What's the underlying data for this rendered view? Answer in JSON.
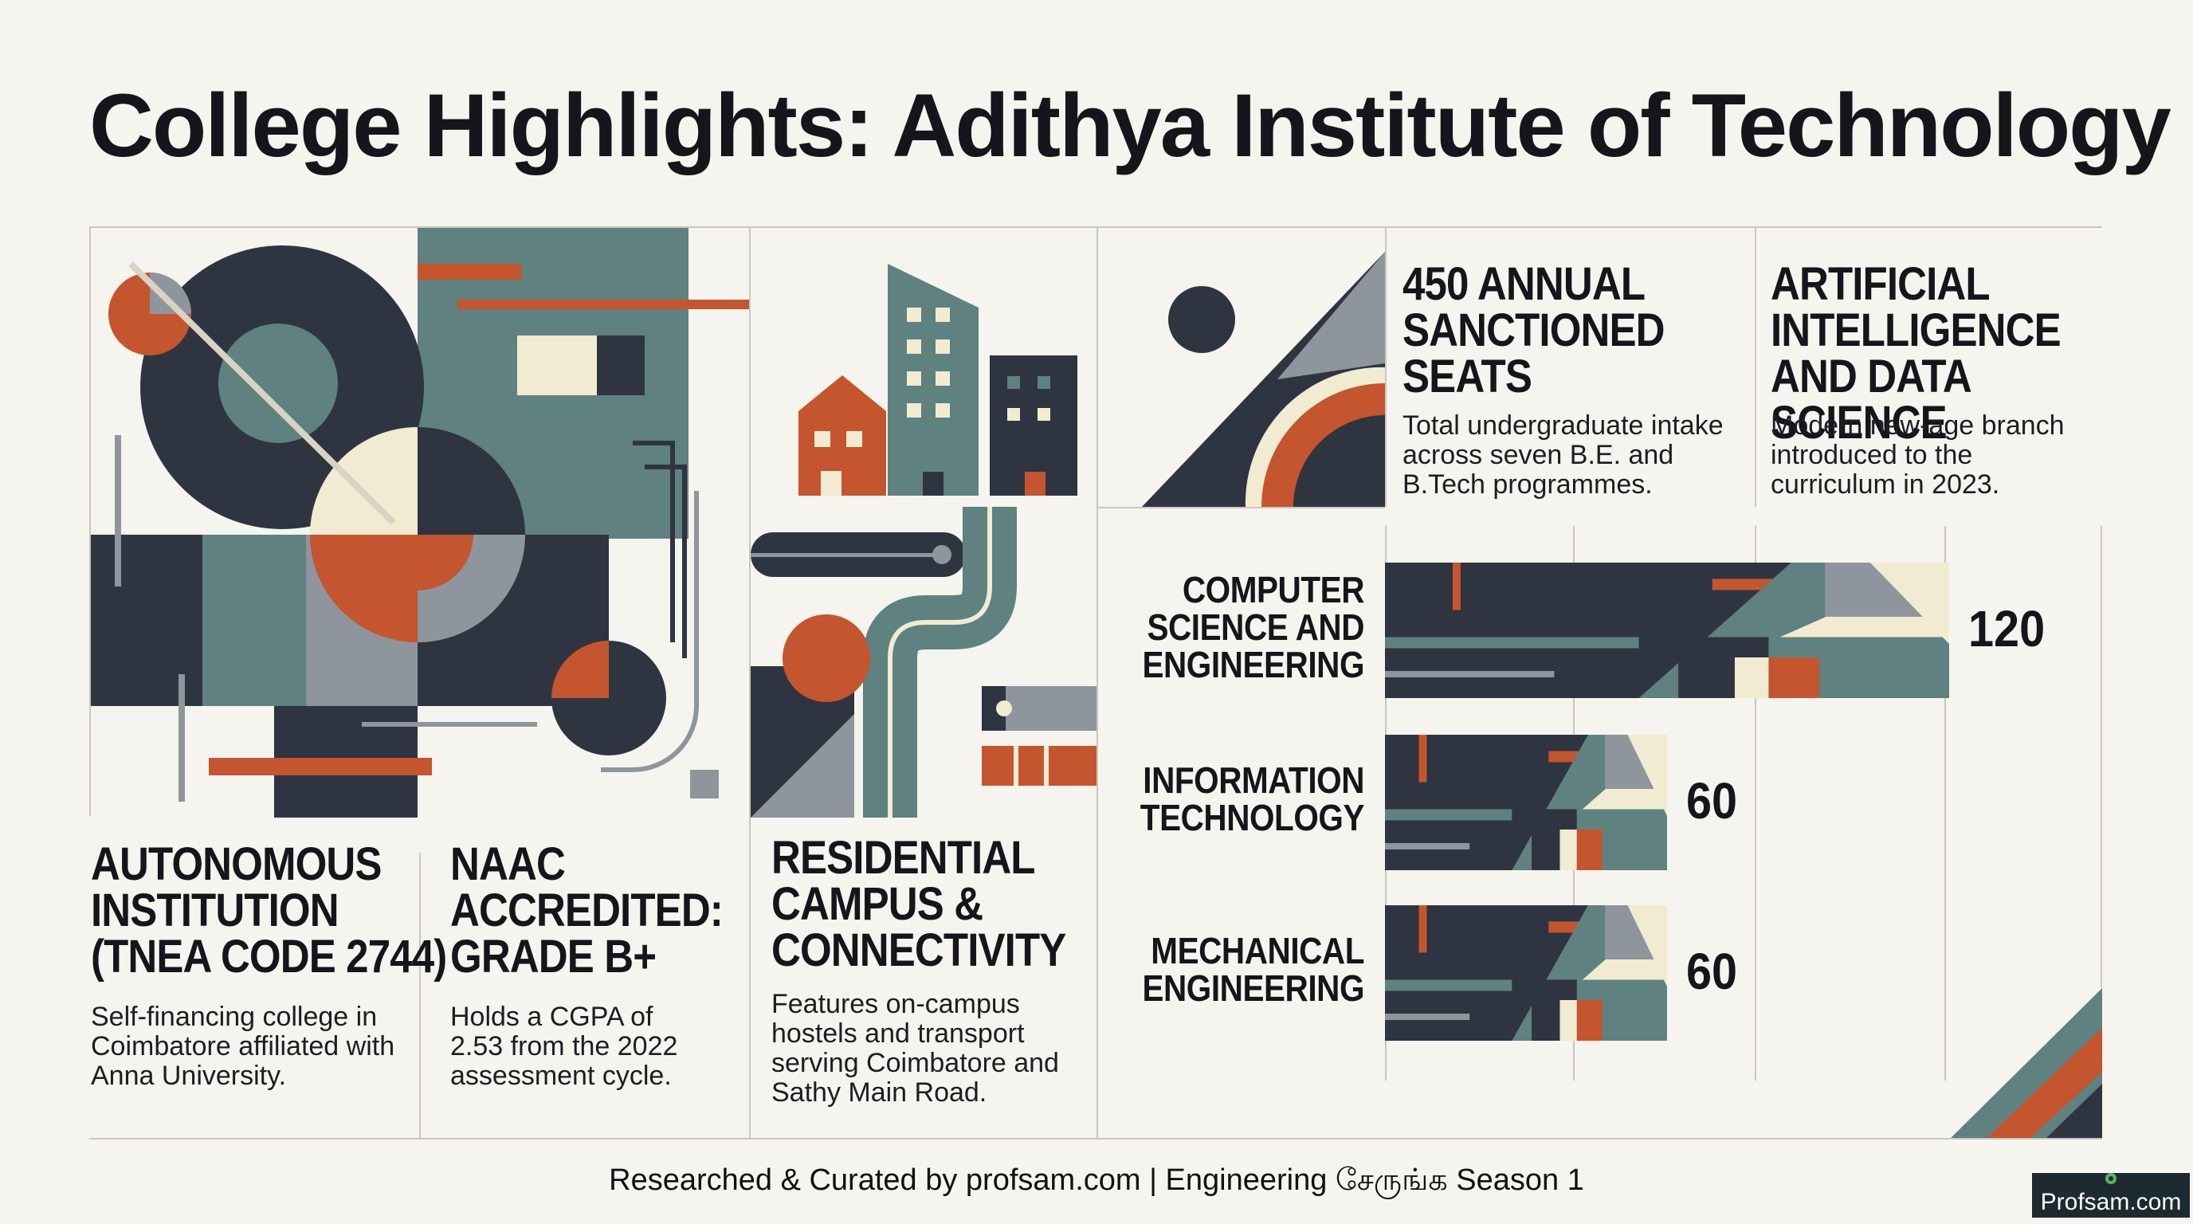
{
  "title": "College Highlights: Adithya Institute of Technology",
  "colors": {
    "navy": "#2f3441",
    "teal": "#5f8180",
    "rust": "#c4552e",
    "cream": "#f1ebd2",
    "grey": "#8e959d",
    "background": "#f6f4ee"
  },
  "cards": {
    "autonomous": {
      "heading": "AUTONOMOUS\nINSTITUTION\n(TNEA CODE 2744)",
      "description": "Self-financing college in\nCoimbatore affiliated with\nAnna University."
    },
    "naac": {
      "heading": "NAAC\nACCREDITED:\nGRADE B+",
      "description": "Holds a CGPA of\n2.53 from the 2022\nassessment cycle."
    },
    "campus": {
      "heading": "RESIDENTIAL\nCAMPUS &\nCONNECTIVITY",
      "description": "Features on-campus\nhostels and transport\nserving Coimbatore and\nSathy Main Road."
    },
    "seats": {
      "heading": "450 ANNUAL\nSANCTIONED\nSEATS",
      "description": "Total undergraduate intake\nacross seven B.E. and\nB.Tech programmes."
    },
    "ai": {
      "heading": "ARTIFICIAL\nINTELLIGENCE\nAND DATA SCIENCE",
      "description": "Modern new-age branch\nintroduced to the\ncurriculum in 2023."
    }
  },
  "chart_data": {
    "type": "bar",
    "orientation": "horizontal",
    "categories": [
      "COMPUTER\nSCIENCE AND\nENGINEERING",
      "INFORMATION\nTECHNOLOGY",
      "MECHANICAL\nENGINEERING"
    ],
    "values": [
      120,
      60,
      60
    ],
    "value_labels": [
      "120",
      "60",
      "60"
    ]
  },
  "footer": "Researched & Curated by profsam.com | Engineering சேருங்க Season 1",
  "badge": "Profsam.com"
}
